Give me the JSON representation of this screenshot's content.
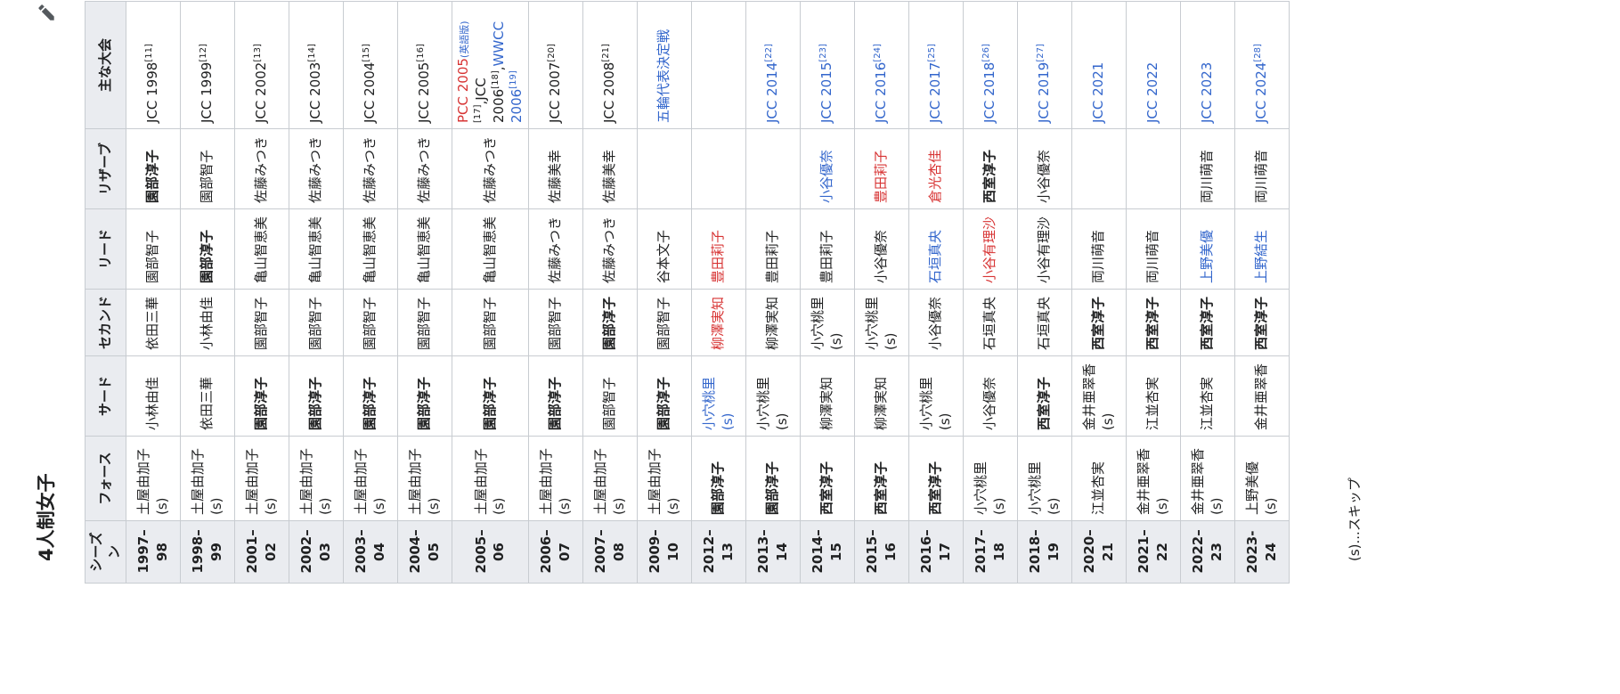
{
  "title": "4人制女子",
  "table": {
    "headers": [
      "シーズン",
      "フォース",
      "サード",
      "セカンド",
      "リード",
      "リザーブ",
      "主な大会"
    ],
    "rows": [
      {
        "season": "1997–98",
        "cells": [
          "土屋由加子 (s)",
          "小林由佳",
          "依田三華",
          "園部智子",
          "園部淳子"
        ],
        "event": [
          "JCC 1998",
          "[11]"
        ]
      },
      {
        "season": "1998–99",
        "cells": [
          "土屋由加子 (s)",
          "依田三華",
          "小林由佳",
          "園部淳子",
          "園部智子"
        ],
        "event": [
          "JCC 1999",
          "[12]"
        ]
      },
      {
        "season": "2001–02",
        "cells": [
          "土屋由加子 (s)",
          "園部淳子",
          "園部智子",
          "亀山智恵美",
          "佐藤みつき"
        ],
        "event": [
          "JCC 2002",
          "[13]"
        ]
      },
      {
        "season": "2002–03",
        "cells": [
          "土屋由加子 (s)",
          "園部淳子",
          "園部智子",
          "亀山智恵美",
          "佐藤みつき"
        ],
        "event": [
          "JCC 2003",
          "[14]"
        ]
      },
      {
        "season": "2003–04",
        "cells": [
          "土屋由加子 (s)",
          "園部淳子",
          "園部智子",
          "亀山智恵美",
          "佐藤みつき"
        ],
        "event": [
          "JCC 2004",
          "[15]"
        ]
      },
      {
        "season": "2004–05",
        "cells": [
          "土屋由加子 (s)",
          "園部淳子",
          "園部智子",
          "亀山智恵美",
          "佐藤みつき"
        ],
        "event": [
          "JCC 2005",
          "[16]"
        ]
      },
      {
        "season": "2005–06",
        "cells": [
          "土屋由加子 (s)",
          "園部淳子",
          "園部智子",
          "亀山智恵美",
          "佐藤みつき"
        ],
        "event": [
          "PCC 2005",
          "(英語版)",
          "[17]",
          ",JCC 2006",
          "[18]",
          ",",
          "WWCC 2006",
          "[19]"
        ]
      },
      {
        "season": "2006–07",
        "cells": [
          "土屋由加子 (s)",
          "園部淳子",
          "園部智子",
          "佐藤みつき",
          "佐藤美幸"
        ],
        "event": [
          "JCC 2007",
          "[20]"
        ]
      },
      {
        "season": "2007–08",
        "cells": [
          "土屋由加子 (s)",
          "園部智子",
          "園部淳子",
          "佐藤みつき",
          "佐藤美幸"
        ],
        "event": [
          "JCC 2008",
          "[21]"
        ]
      },
      {
        "season": "2009–10",
        "cells": [
          "土屋由加子 (s)",
          "園部淳子",
          "園部智子",
          "谷本文子",
          null
        ],
        "event": [
          "五輪代表決定戦"
        ]
      },
      {
        "season": "2012–13",
        "cells": [
          "園部淳子",
          "小穴桃里 (s)",
          "柳澤実知",
          "豊田莉子",
          null
        ],
        "event": []
      },
      {
        "season": "2013–14",
        "cells": [
          "園部淳子",
          "小穴桃里 (s)",
          "柳澤実知",
          "豊田莉子",
          null
        ],
        "event": [
          "JCC 2014",
          "[22]"
        ]
      },
      {
        "season": "2014–15",
        "cells": [
          "西室淳子",
          "柳澤実知",
          "小穴桃里 (s)",
          "豊田莉子",
          "小谷優奈"
        ],
        "event": [
          "JCC 2015",
          "[23]"
        ]
      },
      {
        "season": "2015–16",
        "cells": [
          "西室淳子",
          "柳澤実知",
          "小穴桃里 (s)",
          "小谷優奈",
          "豊田莉子"
        ],
        "event": [
          "JCC 2016",
          "[24]"
        ]
      },
      {
        "season": "2016–17",
        "cells": [
          "西室淳子",
          "小穴桃里 (s)",
          "小谷優奈",
          "石垣真央",
          "倉光杏佳"
        ],
        "event": [
          "JCC 2017",
          "[25]"
        ]
      },
      {
        "season": "2017–18",
        "cells": [
          "小穴桃里 (s)",
          "小谷優奈",
          "石垣真央",
          "小谷有理沙",
          "西室淳子"
        ],
        "event": [
          "JCC 2018",
          "[26]"
        ]
      },
      {
        "season": "2018–19",
        "cells": [
          "小穴桃里 (s)",
          "西室淳子",
          "石垣真央",
          "小谷有理沙",
          "小谷優奈"
        ],
        "event": [
          "JCC 2019",
          "[27]"
        ]
      },
      {
        "season": "2020–21",
        "cells": [
          "江並杏実",
          "金井亜翠香 (s)",
          "西室淳子",
          "両川萌音",
          null
        ],
        "event": [
          "JCC 2021"
        ]
      },
      {
        "season": "2021–22",
        "cells": [
          "金井亜翠香 (s)",
          "江並杏実",
          "西室淳子",
          "両川萌音",
          null
        ],
        "event": [
          "JCC 2022"
        ]
      },
      {
        "season": "2022–23",
        "cells": [
          "金井亜翠香 (s)",
          "江並杏実",
          "西室淳子",
          "上野美優",
          "両川萌音"
        ],
        "event": [
          "JCC 2023"
        ]
      },
      {
        "season": "2023-24",
        "cells": [
          "上野美優 (s)",
          "金井亜翠香",
          "西室淳子",
          "上野結生",
          "両川萌音"
        ],
        "event": [
          "JCC 2024",
          "[28]"
        ]
      }
    ]
  },
  "footnote": "(s)...スキップ"
}
